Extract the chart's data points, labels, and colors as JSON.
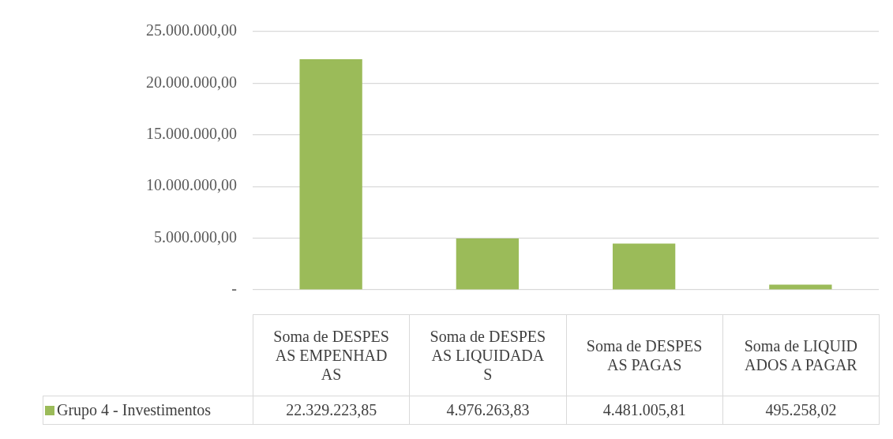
{
  "chart_data": {
    "type": "bar",
    "categories": [
      "Soma de DESPESAS EMPENHADAS",
      "Soma de DESPESAS LIQUIDADAS",
      "Soma de DESPESAS PAGAS",
      "Soma de LIQUIDADOS A PAGAR"
    ],
    "series": [
      {
        "name": "Grupo 4 - Investimentos",
        "color": "#9bbb59",
        "values": [
          22329223.85,
          4976263.83,
          4481005.81,
          495258.02
        ],
        "value_labels": [
          "22.329.223,85",
          "4.976.263,83",
          "4.481.005,81",
          "495.258,02"
        ]
      }
    ],
    "ylim": [
      0,
      25000000
    ],
    "yticks": [
      {
        "value": 0,
        "label": "-"
      },
      {
        "value": 5000000,
        "label": "5.000.000,00"
      },
      {
        "value": 10000000,
        "label": "10.000.000,00"
      },
      {
        "value": 15000000,
        "label": "15.000.000,00"
      },
      {
        "value": 20000000,
        "label": "20.000.000,00"
      },
      {
        "value": 25000000,
        "label": "25.000.000,00"
      }
    ],
    "grid": "y",
    "legend": "bottom"
  }
}
